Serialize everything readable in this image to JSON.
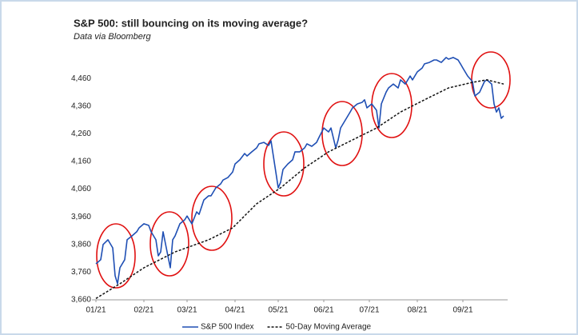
{
  "chart_data": {
    "type": "line",
    "title": "S&P 500: still bouncing on its moving average?",
    "subtitle": "Data via Bloomberg",
    "xlim": [
      0,
      170
    ],
    "xticks": [
      {
        "value": 0,
        "label": "01/21"
      },
      {
        "value": 20,
        "label": "02/21"
      },
      {
        "value": 38,
        "label": "03/21"
      },
      {
        "value": 58,
        "label": "04/21"
      },
      {
        "value": 76,
        "label": "05/21"
      },
      {
        "value": 95,
        "label": "06/21"
      },
      {
        "value": 114,
        "label": "07/21"
      },
      {
        "value": 134,
        "label": "08/21"
      },
      {
        "value": 153,
        "label": "09/21"
      }
    ],
    "ylim": [
      3660,
      4560
    ],
    "yticks": [
      {
        "value": 3660,
        "label": "3,660"
      },
      {
        "value": 3760,
        "label": "3,760"
      },
      {
        "value": 3860,
        "label": "3,860"
      },
      {
        "value": 3960,
        "label": "3,960"
      },
      {
        "value": 4060,
        "label": "4,060"
      },
      {
        "value": 4160,
        "label": "4,160"
      },
      {
        "value": 4260,
        "label": "4,260"
      },
      {
        "value": 4360,
        "label": "4,360"
      },
      {
        "value": 4460,
        "label": "4,460"
      }
    ],
    "grid": false,
    "legend": "bottom",
    "series": [
      {
        "name": "S&P 500 Index",
        "color": "#1f4fb4",
        "line_style": "solid",
        "x": [
          0,
          2,
          3,
          5,
          7,
          8,
          9,
          10,
          12,
          13,
          15,
          17,
          18,
          20,
          22,
          23,
          25,
          26,
          27,
          28,
          30,
          31,
          32,
          33,
          35,
          37,
          38,
          40,
          42,
          43,
          45,
          47,
          48,
          50,
          52,
          53,
          55,
          57,
          58,
          60,
          62,
          63,
          65,
          67,
          68,
          70,
          72,
          73,
          75,
          76,
          77,
          78,
          80,
          82,
          83,
          85,
          87,
          88,
          90,
          92,
          93,
          95,
          97,
          98,
          100,
          101,
          102,
          104,
          106,
          107,
          109,
          111,
          112,
          113,
          115,
          117,
          118,
          119,
          121,
          122,
          124,
          126,
          127,
          129,
          131,
          132,
          134,
          136,
          137,
          139,
          141,
          142,
          144,
          146,
          147,
          149,
          151,
          152,
          153,
          155,
          157,
          158,
          160,
          162,
          163,
          165,
          166,
          167,
          168,
          169,
          170
        ],
        "values": [
          3790,
          3805,
          3860,
          3877,
          3848,
          3747,
          3718,
          3776,
          3805,
          3877,
          3891,
          3906,
          3920,
          3935,
          3929,
          3906,
          3877,
          3819,
          3833,
          3906,
          3819,
          3776,
          3877,
          3891,
          3935,
          3949,
          3963,
          3935,
          3978,
          3969,
          4021,
          4036,
          4036,
          4065,
          4079,
          4093,
          4102,
          4122,
          4151,
          4166,
          4189,
          4180,
          4195,
          4209,
          4224,
          4229,
          4218,
          4235,
          4122,
          4065,
          4085,
          4131,
          4151,
          4166,
          4195,
          4195,
          4209,
          4224,
          4215,
          4229,
          4247,
          4281,
          4267,
          4281,
          4209,
          4238,
          4281,
          4310,
          4339,
          4354,
          4368,
          4374,
          4383,
          4354,
          4368,
          4345,
          4281,
          4368,
          4411,
          4426,
          4440,
          4426,
          4455,
          4440,
          4469,
          4455,
          4484,
          4498,
          4513,
          4518,
          4527,
          4527,
          4518,
          4536,
          4530,
          4536,
          4527,
          4513,
          4498,
          4469,
          4449,
          4397,
          4411,
          4449,
          4455,
          4440,
          4368,
          4339,
          4354,
          4316,
          4325
        ]
      },
      {
        "name": "50-Day Moving Average",
        "color": "#111111",
        "line_style": "dashed",
        "x": [
          0,
          10,
          20,
          33,
          47,
          57,
          67,
          77,
          87,
          97,
          107,
          117,
          127,
          137,
          147,
          157,
          163,
          170
        ],
        "values": [
          3665,
          3718,
          3776,
          3833,
          3877,
          3920,
          4007,
          4065,
          4137,
          4195,
          4238,
          4281,
          4339,
          4383,
          4426,
          4446,
          4455,
          4440
        ]
      }
    ]
  }
}
